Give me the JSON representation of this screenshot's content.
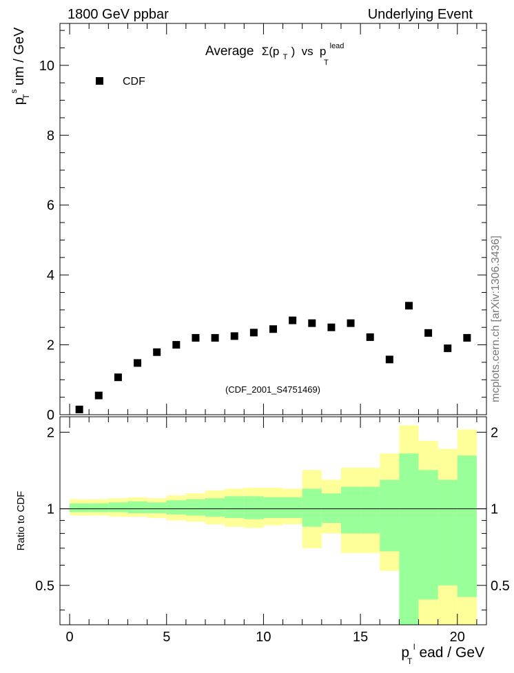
{
  "header": {
    "left": "1800 GeV ppbar",
    "right": "Underlying Event"
  },
  "side_label": "mcplots.cern.ch [arXiv:1306.3436]",
  "colors": {
    "data_marker": "#000000",
    "band_outer": "#ffff99",
    "band_inner": "#99ff99",
    "ratio_line": "#000000",
    "watermark": "#999999"
  },
  "chart_data": [
    {
      "type": "scatter",
      "title_parts": {
        "main": "Average",
        "sigma": "Σ(p",
        "sub_T": "T",
        "close": ")",
        "vs": "vs",
        "p": "p",
        "sup_lead": "lead",
        "sub_T2": "T"
      },
      "ylabel_parts": {
        "p": "p",
        "sup": "s",
        "sub": "T",
        "rest": "um / GeV"
      },
      "watermark": "(CDF_2001_S4751469)",
      "legend": {
        "label": "CDF",
        "placement": "top-left"
      },
      "xlim": [
        -0.5,
        21.5
      ],
      "ylim": [
        0,
        11.2
      ],
      "yticks": [
        0,
        2,
        4,
        6,
        8,
        10
      ],
      "ytick_labels": [
        "0",
        "2",
        "4",
        "6",
        "8",
        "10"
      ],
      "series": [
        {
          "name": "CDF",
          "x": [
            0.5,
            1.5,
            2.5,
            3.5,
            4.5,
            5.5,
            6.5,
            7.5,
            8.5,
            9.5,
            10.5,
            11.5,
            12.5,
            13.5,
            14.5,
            15.5,
            16.5,
            17.5,
            18.5,
            19.5,
            20.5
          ],
          "y": [
            0.15,
            0.55,
            1.07,
            1.48,
            1.79,
            2.0,
            2.2,
            2.2,
            2.25,
            2.35,
            2.45,
            2.7,
            2.62,
            2.5,
            2.62,
            2.22,
            1.58,
            3.12,
            2.34,
            1.9,
            2.2
          ]
        }
      ]
    },
    {
      "type": "area",
      "ylabel": "Ratio to CDF",
      "xlabel_parts": {
        "p": "p",
        "sup": "l",
        "sub": "T",
        "rest": "ead / GeV"
      },
      "xlim": [
        -0.5,
        21.5
      ],
      "ylim": [
        0.35,
        2.3
      ],
      "xticks": [
        0,
        5,
        10,
        15,
        20
      ],
      "xtick_labels": [
        "0",
        "5",
        "10",
        "15",
        "20"
      ],
      "yticks": [
        0.5,
        1,
        2
      ],
      "ytick_labels": [
        "0.5",
        "1",
        "2"
      ],
      "reference_line": 1,
      "bins": [
        [
          0,
          1
        ],
        [
          1,
          2
        ],
        [
          2,
          3
        ],
        [
          3,
          4
        ],
        [
          4,
          5
        ],
        [
          5,
          6
        ],
        [
          6,
          7
        ],
        [
          7,
          8
        ],
        [
          8,
          9
        ],
        [
          9,
          10
        ],
        [
          10,
          11
        ],
        [
          11,
          12
        ],
        [
          12,
          13
        ],
        [
          13,
          14
        ],
        [
          14,
          15
        ],
        [
          15,
          16
        ],
        [
          16,
          17
        ],
        [
          17,
          18
        ],
        [
          18,
          19
        ],
        [
          19,
          20
        ],
        [
          20,
          21
        ]
      ],
      "series": [
        {
          "name": "outer_band",
          "low": [
            0.94,
            0.94,
            0.93,
            0.93,
            0.92,
            0.9,
            0.89,
            0.87,
            0.85,
            0.84,
            0.86,
            0.87,
            0.7,
            0.8,
            0.67,
            0.67,
            0.57,
            0.35,
            0.35,
            0.35,
            0.35
          ],
          "high": [
            1.09,
            1.09,
            1.1,
            1.11,
            1.1,
            1.13,
            1.15,
            1.18,
            1.2,
            1.21,
            1.21,
            1.2,
            1.42,
            1.3,
            1.45,
            1.45,
            1.65,
            2.13,
            1.85,
            1.72,
            2.05
          ]
        },
        {
          "name": "inner_band",
          "low": [
            0.97,
            0.97,
            0.97,
            0.96,
            0.96,
            0.95,
            0.94,
            0.93,
            0.92,
            0.91,
            0.92,
            0.92,
            0.85,
            0.88,
            0.8,
            0.8,
            0.68,
            0.35,
            0.44,
            0.5,
            0.45
          ],
          "high": [
            1.05,
            1.05,
            1.06,
            1.07,
            1.06,
            1.08,
            1.09,
            1.1,
            1.12,
            1.12,
            1.11,
            1.11,
            1.2,
            1.15,
            1.22,
            1.22,
            1.3,
            1.65,
            1.42,
            1.3,
            1.62
          ]
        }
      ]
    }
  ]
}
